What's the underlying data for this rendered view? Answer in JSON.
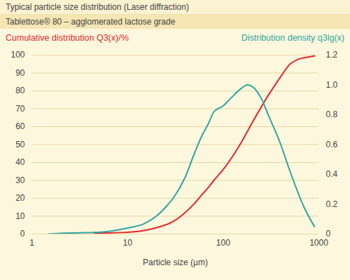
{
  "chart_data": {
    "type": "line",
    "title": "Typical particle size distribution (Laser diffraction)",
    "subtitle": "Tablettose® 80 – agglomerated lactose grade",
    "xlabel": "Particle size (µm)",
    "log": "x",
    "grid": true,
    "legend": "top",
    "xlim": [
      1,
      1000
    ],
    "xticks": [
      1,
      10,
      100,
      1000
    ],
    "ylim": [
      0,
      100
    ],
    "yticks": [
      0,
      10,
      20,
      30,
      40,
      50,
      60,
      70,
      80,
      90,
      100
    ],
    "y2lim": [
      0,
      1.2
    ],
    "y2ticks": [
      0,
      0.2,
      0.4,
      0.6,
      0.8,
      {
        "value": 1,
        "label": "1.0"
      },
      1.2
    ],
    "series": [
      {
        "name": "Cumulative distribution Q3(x)/%",
        "color": "#e5262d",
        "x": [
          4.5,
          10,
          15,
          20,
          30,
          40,
          50,
          60,
          70,
          80,
          100,
          150,
          200,
          300,
          400,
          500,
          600,
          800,
          900
        ],
        "values": [
          0.5,
          1,
          2,
          3.5,
          7,
          12,
          17,
          22,
          26,
          30,
          36,
          50,
          62,
          78,
          88,
          95,
          97.5,
          99,
          99.5
        ]
      },
      {
        "name": "Distribution density q3lg(x)",
        "color": "#2ba6a0",
        "axis": "y2",
        "x": [
          1.5,
          2,
          5,
          10,
          15,
          20,
          25,
          30,
          40,
          50,
          60,
          70,
          80,
          100,
          120,
          150,
          180,
          200,
          250,
          300,
          400,
          500,
          700,
          900
        ],
        "values": [
          0,
          0.005,
          0.012,
          0.04,
          0.07,
          0.12,
          0.18,
          0.24,
          0.38,
          0.54,
          0.66,
          0.74,
          0.82,
          0.86,
          0.91,
          0.97,
          1.0,
          0.99,
          0.91,
          0.79,
          0.6,
          0.42,
          0.18,
          0.05
        ]
      }
    ]
  }
}
